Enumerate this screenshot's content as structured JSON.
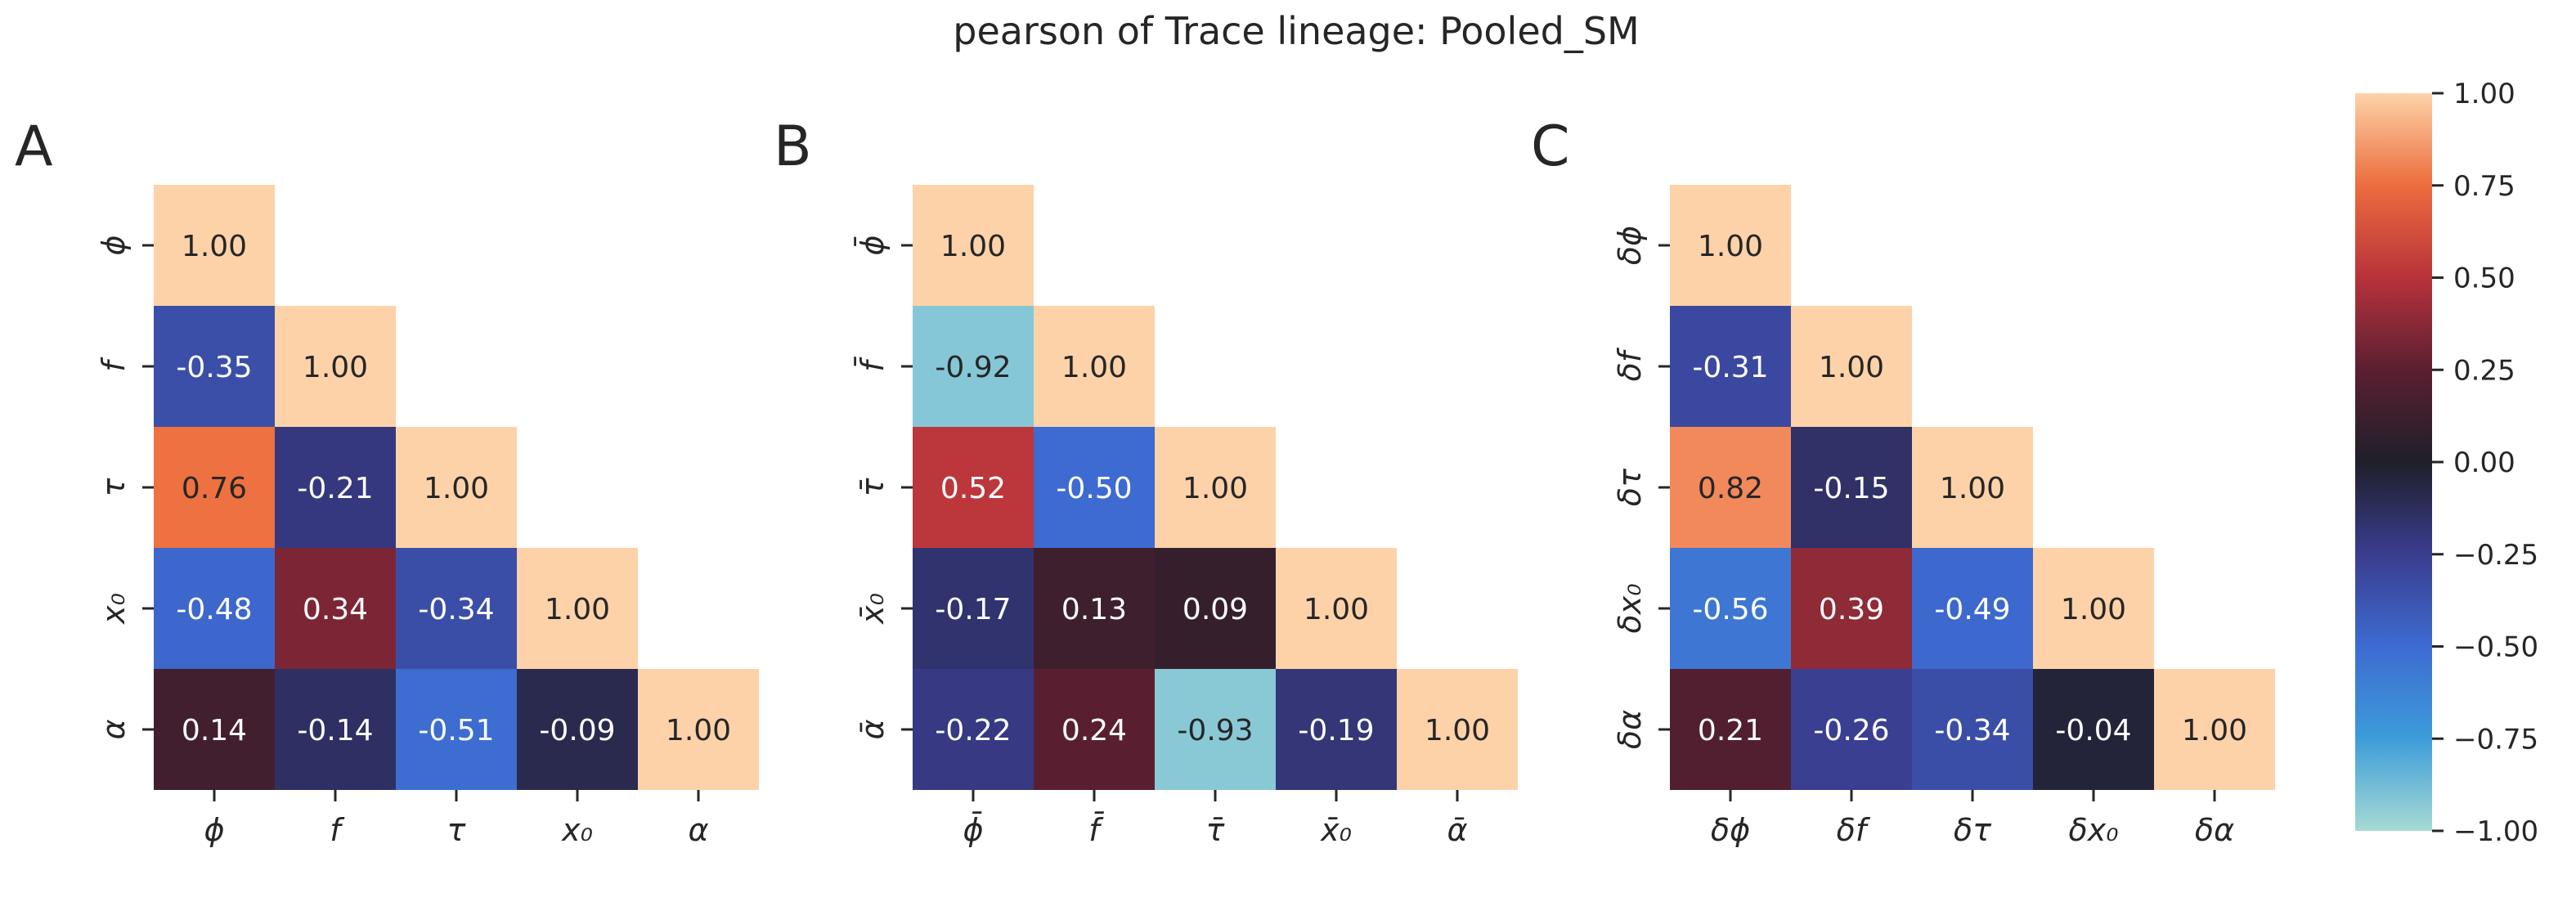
{
  "title": "pearson of Trace lineage: Pooled_SM",
  "chart_data": [
    {
      "type": "heatmap",
      "panel": "A",
      "labels": [
        "ϕ",
        "f",
        "τ",
        "x₀",
        "α"
      ],
      "matrix": [
        [
          1.0,
          null,
          null,
          null,
          null
        ],
        [
          -0.35,
          1.0,
          null,
          null,
          null
        ],
        [
          0.76,
          -0.21,
          1.0,
          null,
          null
        ],
        [
          -0.48,
          0.34,
          -0.34,
          1.0,
          null
        ],
        [
          0.14,
          -0.14,
          -0.51,
          -0.09,
          1.0
        ]
      ]
    },
    {
      "type": "heatmap",
      "panel": "B",
      "labels": [
        "ϕ̄",
        "f̄",
        "τ̄",
        "x̄₀",
        "ᾱ"
      ],
      "matrix": [
        [
          1.0,
          null,
          null,
          null,
          null
        ],
        [
          -0.92,
          1.0,
          null,
          null,
          null
        ],
        [
          0.52,
          -0.5,
          1.0,
          null,
          null
        ],
        [
          -0.17,
          0.13,
          0.09,
          1.0,
          null
        ],
        [
          -0.22,
          0.24,
          -0.93,
          -0.19,
          1.0
        ]
      ]
    },
    {
      "type": "heatmap",
      "panel": "C",
      "labels": [
        "δϕ",
        "δf",
        "δτ",
        "δx₀",
        "δα"
      ],
      "matrix": [
        [
          1.0,
          null,
          null,
          null,
          null
        ],
        [
          -0.31,
          1.0,
          null,
          null,
          null
        ],
        [
          0.82,
          -0.15,
          1.0,
          null,
          null
        ],
        [
          -0.56,
          0.39,
          -0.49,
          1.0,
          null
        ],
        [
          0.21,
          -0.26,
          -0.34,
          -0.04,
          1.0
        ]
      ]
    }
  ],
  "colorbar": {
    "vmin": -1.0,
    "vmax": 1.0,
    "ticks": [
      "1.00",
      "0.75",
      "0.50",
      "0.25",
      "0.00",
      "−0.25",
      "−0.50",
      "−0.75",
      "−1.00"
    ]
  },
  "colormap": {
    "name": "icefire",
    "stops": [
      "#a7dbd4",
      "#3d9cd9",
      "#3d6bd1",
      "#3a3d8f",
      "#1f1f2a",
      "#5b1f31",
      "#b8323b",
      "#ec6d3d",
      "#fdd2a8"
    ]
  }
}
